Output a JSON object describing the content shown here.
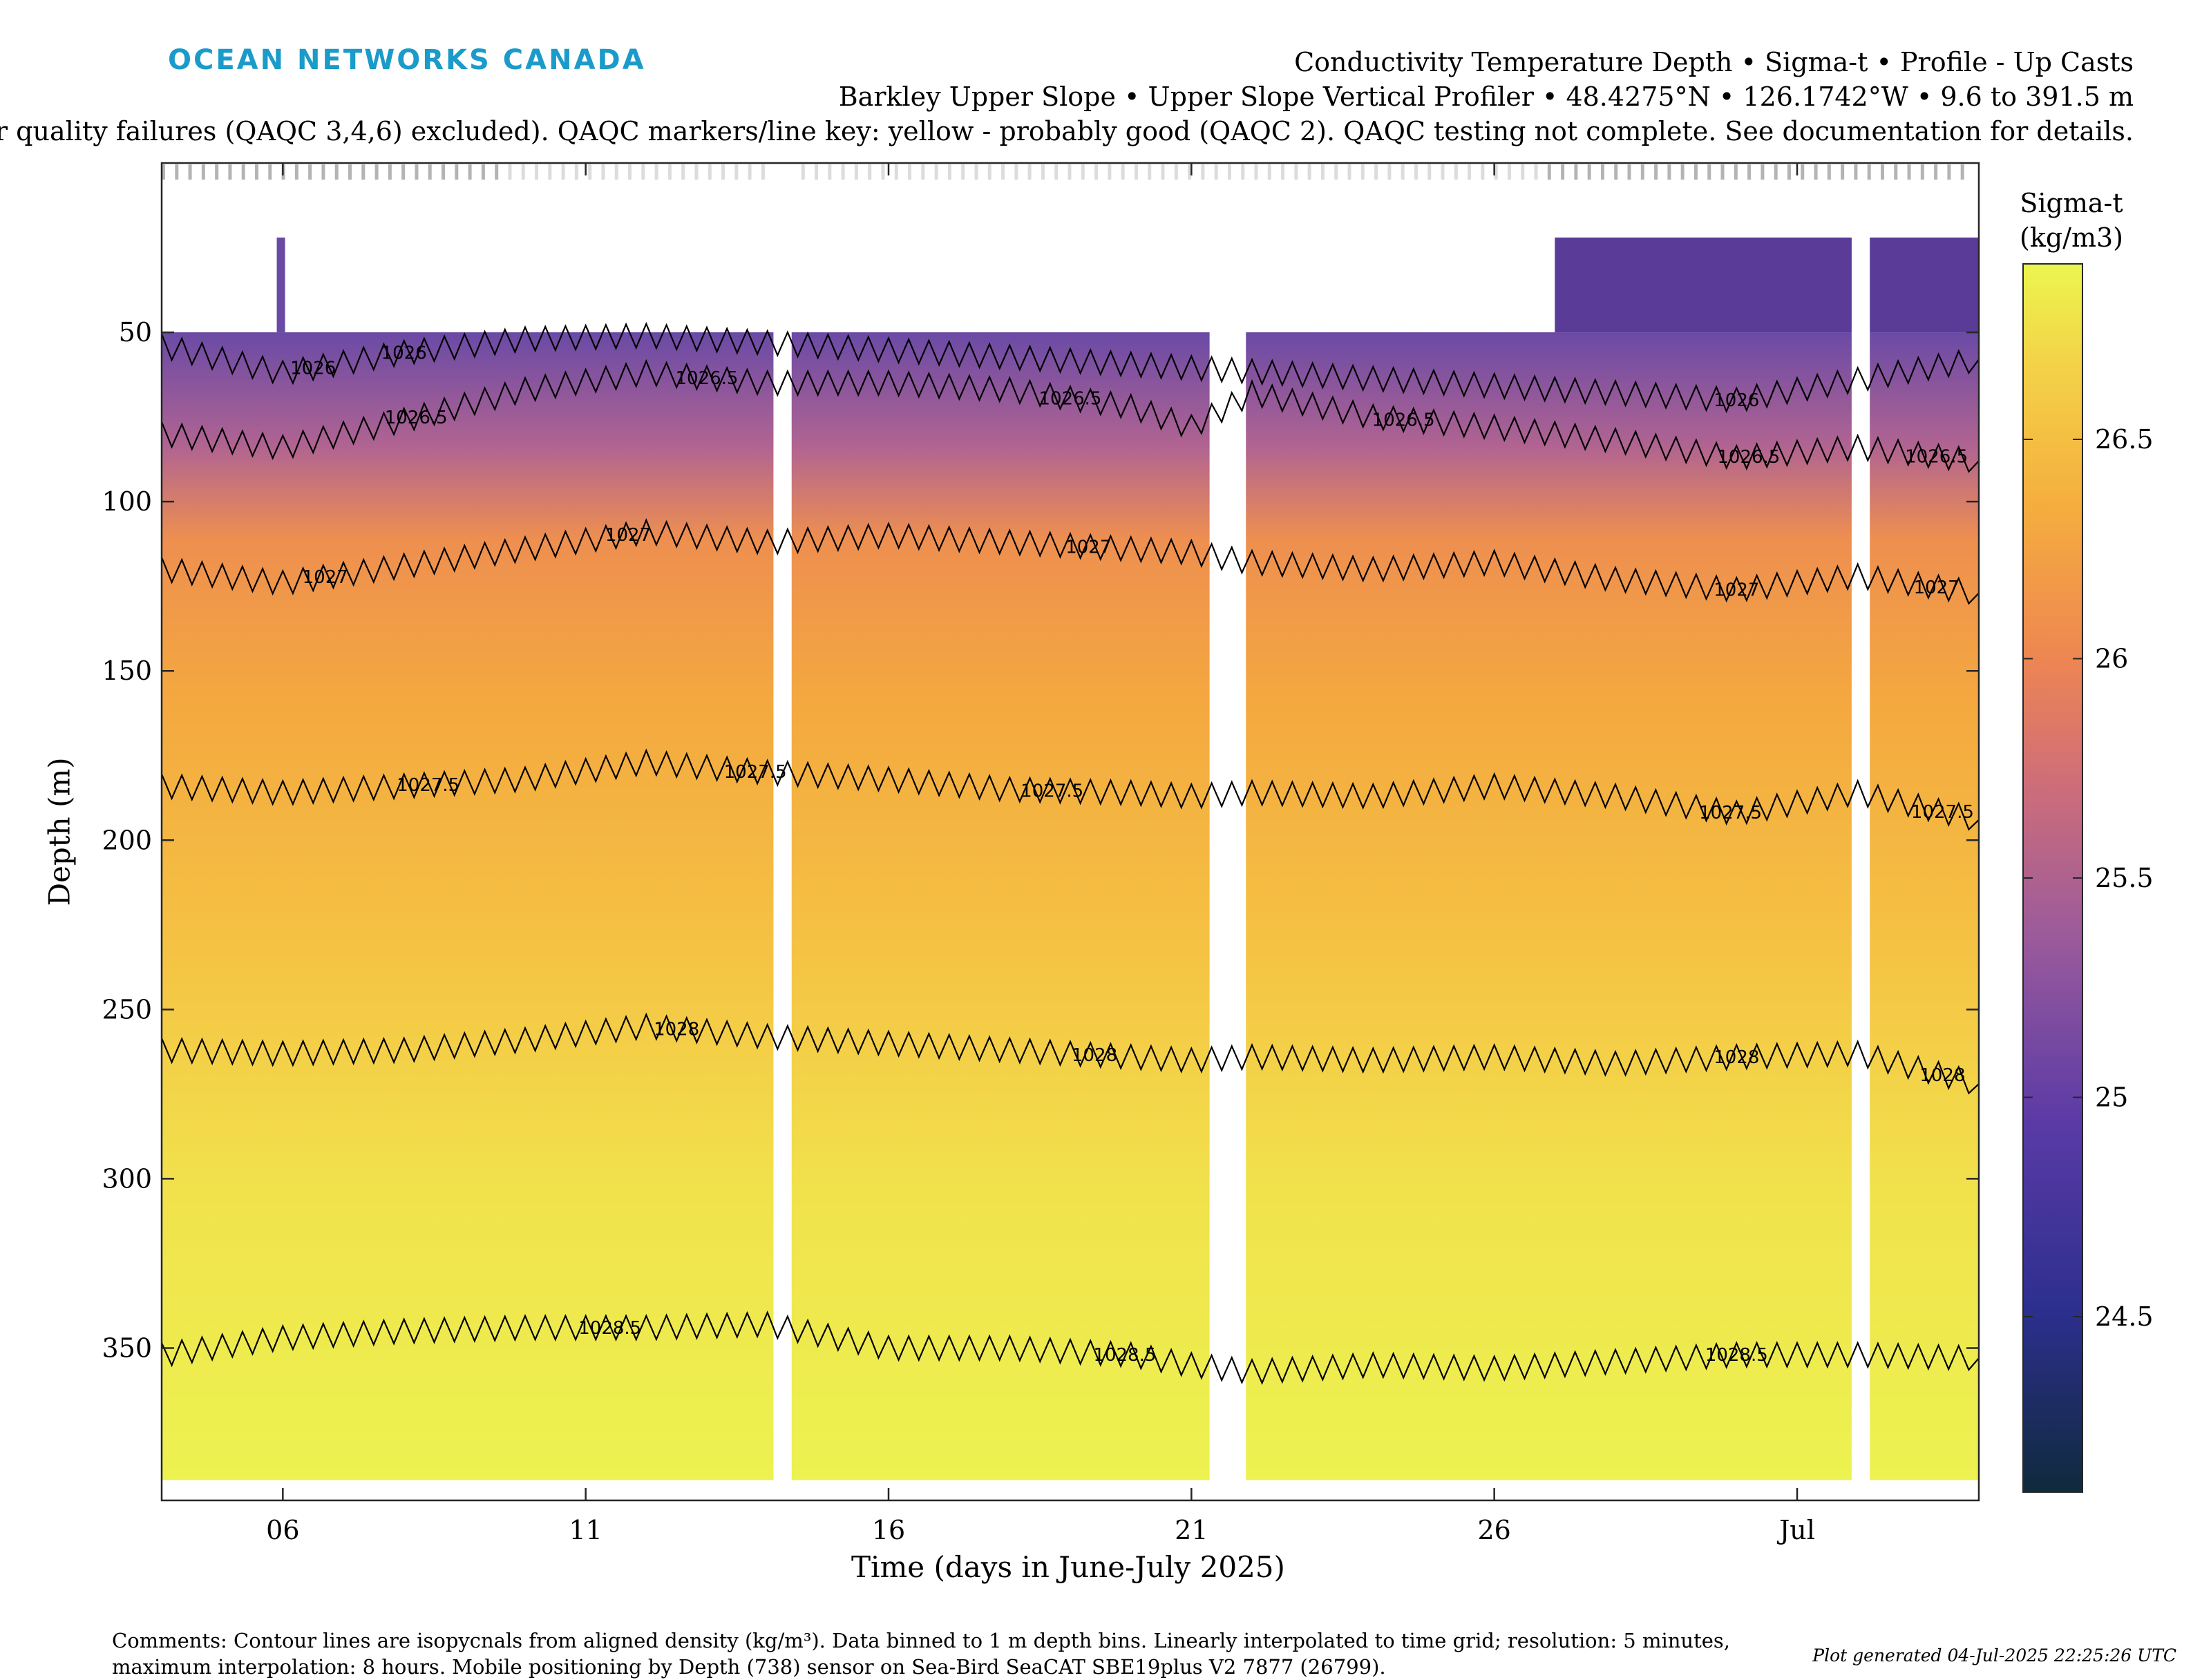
{
  "header": {
    "logo_text": "OCEAN NETWORKS CANADA",
    "title": "Conductivity Temperature Depth • Sigma-t • Profile - Up Casts",
    "subtitle": "Barkley Upper Slope • Upper Slope Vertical Profiler • 48.4275°N • 126.1742°W • 9.6 to 391.5 m",
    "qaqc_note": "or quality failures (QAQC 3,4,6) excluded). QAQC markers/line key: yellow - probably good (QAQC 2). QAQC testing not complete. See documentation for details."
  },
  "footer": {
    "comments_line1": "Comments: Contour lines are isopycnals from aligned density (kg/m³). Data binned to 1 m depth bins. Linearly interpolated to time grid; resolution: 5 minutes,",
    "comments_line2": "maximum interpolation: 8 hours. Mobile positioning by Depth (738) sensor on Sea-Bird SeaCAT SBE19plus V2 7877 (26799).",
    "generated": "Plot generated 04-Jul-2025 22:25:26 UTC"
  },
  "colors": {
    "logo": "#1a9bc9",
    "colormap": [
      "#0f2a3c",
      "#3b2fa5",
      "#7c4fa6",
      "#c06b85",
      "#ee8d52",
      "#f5b542",
      "#f0e24c",
      "#ecf64f"
    ],
    "contour": "#000000",
    "qaqc_marker": "#bbbbbb"
  },
  "chart_data": {
    "type": "heatmap",
    "xlabel": "Time (days in June-July 2025)",
    "ylabel": "Depth (m)",
    "xlim": [
      "2025-06-04",
      "2025-07-04"
    ],
    "ylim": [
      0,
      395
    ],
    "y_reversed": true,
    "x_ticks": [
      {
        "date": "2025-06-06",
        "label": "06"
      },
      {
        "date": "2025-06-11",
        "label": "11"
      },
      {
        "date": "2025-06-16",
        "label": "16"
      },
      {
        "date": "2025-06-21",
        "label": "21"
      },
      {
        "date": "2025-06-26",
        "label": "26"
      },
      {
        "date": "2025-07-01",
        "label": "Jul"
      }
    ],
    "y_ticks": [
      50,
      100,
      150,
      200,
      250,
      300,
      350
    ],
    "colorbar": {
      "title_line1": "Sigma-t",
      "title_line2": "(kg/m3)",
      "range": [
        24.1,
        26.9
      ],
      "ticks": [
        "24.5",
        "25",
        "25.5",
        "26",
        "26.5"
      ]
    },
    "data_gaps": [
      {
        "from": "2025-06-14.1",
        "to": "2025-06-14.4"
      },
      {
        "from": "2025-06-21.3",
        "to": "2025-06-21.9"
      },
      {
        "from": "2025-07-01.9",
        "to": "2025-07-02.2"
      }
    ],
    "contours": [
      {
        "level": "1026",
        "label_dates": [
          "2025-06-06.5",
          "2025-06-08.0",
          "2025-06-30.0"
        ],
        "depths": [
          [
            4.0,
            54
          ],
          [
            6.0,
            62
          ],
          [
            8.0,
            56
          ],
          [
            10.0,
            52
          ],
          [
            12.0,
            51
          ],
          [
            30.0,
            70
          ],
          [
            34.0,
            58
          ]
        ]
      },
      {
        "level": "1026.5",
        "label_dates": [
          "2025-06-08.2",
          "2025-06-13.0",
          "2025-06-19.0",
          "2025-06-24.5",
          "2025-06-30.2",
          "2025-07-03.3"
        ],
        "depths": [
          [
            4.0,
            80
          ],
          [
            6.0,
            84
          ],
          [
            8.0,
            76
          ],
          [
            10.0,
            67
          ],
          [
            12.0,
            62
          ],
          [
            14.0,
            65
          ],
          [
            16.0,
            65
          ],
          [
            18.0,
            67
          ],
          [
            20.0,
            72
          ],
          [
            21.0,
            78
          ],
          [
            22.0,
            68
          ],
          [
            24.0,
            75
          ],
          [
            26.0,
            78
          ],
          [
            28.0,
            82
          ],
          [
            30.0,
            87
          ],
          [
            32.0,
            84
          ],
          [
            34.0,
            88
          ]
        ]
      },
      {
        "level": "1027",
        "label_dates": [
          "2025-06-06.7",
          "2025-06-11.7",
          "2025-06-19.3",
          "2025-06-30.0",
          "2025-07-03.3"
        ],
        "depths": [
          [
            4.0,
            120
          ],
          [
            6.0,
            124
          ],
          [
            8.0,
            119
          ],
          [
            10.0,
            114
          ],
          [
            12.0,
            109
          ],
          [
            14.0,
            112
          ],
          [
            16.0,
            110
          ],
          [
            18.0,
            112
          ],
          [
            20.0,
            114
          ],
          [
            21.0,
            115
          ],
          [
            22.0,
            118
          ],
          [
            24.0,
            120
          ],
          [
            26.0,
            118
          ],
          [
            28.0,
            123
          ],
          [
            30.0,
            126
          ],
          [
            32.0,
            122
          ],
          [
            34.0,
            127
          ]
        ]
      },
      {
        "level": "1027.5",
        "label_dates": [
          "2025-06-08.4",
          "2025-06-13.8",
          "2025-06-18.7",
          "2025-06-29.9",
          "2025-07-03.4"
        ],
        "depths": [
          [
            4.0,
            184
          ],
          [
            6.0,
            186
          ],
          [
            8.0,
            184
          ],
          [
            10.0,
            182
          ],
          [
            12.0,
            177
          ],
          [
            14.0,
            180
          ],
          [
            16.0,
            182
          ],
          [
            18.0,
            185
          ],
          [
            20.0,
            186
          ],
          [
            21.0,
            187
          ],
          [
            22.0,
            186
          ],
          [
            24.0,
            187
          ],
          [
            26.0,
            184
          ],
          [
            28.0,
            187
          ],
          [
            30.0,
            192
          ],
          [
            32.0,
            186
          ],
          [
            34.0,
            194
          ]
        ]
      },
      {
        "level": "1028",
        "label_dates": [
          "2025-06-12.5",
          "2025-06-19.4",
          "2025-06-30.0",
          "2025-07-03.4"
        ],
        "depths": [
          [
            4.0,
            262
          ],
          [
            6.0,
            263
          ],
          [
            8.0,
            262
          ],
          [
            10.0,
            259
          ],
          [
            12.0,
            255
          ],
          [
            14.0,
            258
          ],
          [
            16.0,
            260
          ],
          [
            18.0,
            262
          ],
          [
            20.0,
            264
          ],
          [
            21.0,
            265
          ],
          [
            22.0,
            264
          ],
          [
            24.0,
            265
          ],
          [
            26.0,
            264
          ],
          [
            28.0,
            266
          ],
          [
            30.0,
            264
          ],
          [
            32.0,
            263
          ],
          [
            34.0,
            272
          ]
        ]
      },
      {
        "level": "1028.5",
        "label_dates": [
          "2025-06-11.4",
          "2025-06-19.9",
          "2025-06-30.0"
        ],
        "depths": [
          [
            4.0,
            352
          ],
          [
            6.0,
            347
          ],
          [
            8.0,
            345
          ],
          [
            10.0,
            344
          ],
          [
            12.0,
            344
          ],
          [
            14.0,
            343
          ],
          [
            16.0,
            350
          ],
          [
            18.0,
            350
          ],
          [
            20.0,
            352
          ],
          [
            21.0,
            355
          ],
          [
            22.0,
            357
          ],
          [
            24.0,
            355
          ],
          [
            26.0,
            356
          ],
          [
            28.0,
            354
          ],
          [
            30.0,
            352
          ],
          [
            32.0,
            352
          ],
          [
            34.0,
            353
          ]
        ]
      }
    ]
  }
}
